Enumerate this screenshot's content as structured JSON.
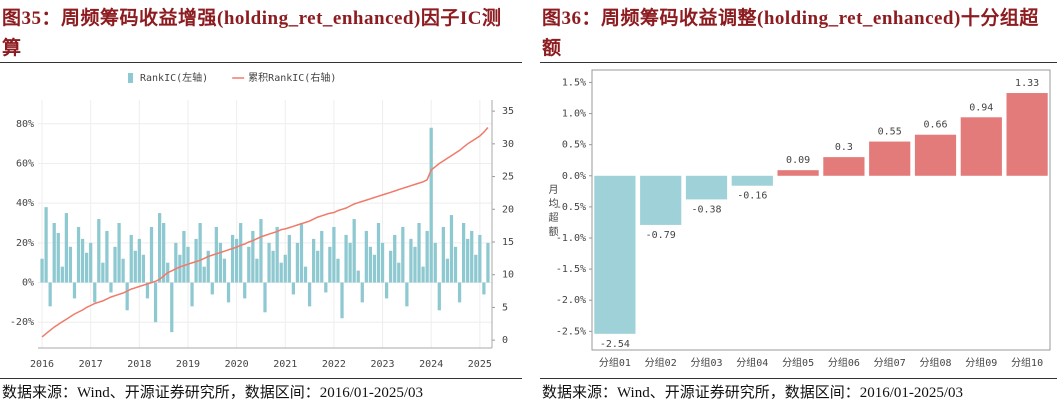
{
  "chart_data": [
    {
      "type": "combo",
      "title": "图35：周频筹码收益增强(holding_ret_enhanced)因子IC测算",
      "source": "数据来源：Wind、开源证券研究所，数据区间：2016/01-2025/03",
      "series": [
        {
          "name": "RankIC(左轴)",
          "type": "bar",
          "color": "#8ec8d0",
          "values": [
            12,
            38,
            -12,
            30,
            25,
            8,
            35,
            18,
            -8,
            28,
            22,
            15,
            20,
            -10,
            32,
            10,
            26,
            -5,
            18,
            30,
            12,
            -14,
            24,
            16,
            22,
            14,
            -8,
            28,
            -20,
            35,
            30,
            10,
            -25,
            20,
            14,
            26,
            18,
            -12,
            22,
            30,
            8,
            16,
            -6,
            28,
            20,
            12,
            -10,
            24,
            22,
            30,
            -8,
            18,
            26,
            12,
            32,
            -15,
            20,
            16,
            28,
            10,
            14,
            24,
            -6,
            20,
            30,
            8,
            -12,
            22,
            16,
            26,
            -5,
            18,
            28,
            12,
            -18,
            24,
            20,
            32,
            6,
            -10,
            26,
            18,
            14,
            30,
            20,
            -8,
            16,
            24,
            10,
            28,
            -12,
            22,
            18,
            30,
            8,
            26,
            78,
            20,
            -14,
            28,
            12,
            34,
            18,
            -10,
            30,
            22,
            26,
            14,
            24,
            -6,
            20
          ],
          "axis": "y"
        },
        {
          "name": "累积RankIC(右轴)",
          "type": "line",
          "color": "#f07a6a",
          "axis": "y2",
          "values": [
            0.5,
            1,
            1.5,
            2,
            2.4,
            2.8,
            3.2,
            3.6,
            4,
            4.3,
            4.6,
            5,
            5.3,
            5.6,
            5.8,
            6,
            6.3,
            6.6,
            6.8,
            7,
            7.2,
            7.5,
            7.8,
            8,
            8.2,
            8.4,
            8.6,
            8.8,
            9,
            9.3,
            9.8,
            10.3,
            10.6,
            10.9,
            11.2,
            11.4,
            11.6,
            11.8,
            12,
            12.2,
            12.5,
            12.8,
            13,
            13.2,
            13.4,
            13.6,
            13.8,
            14,
            14.2,
            14.5,
            14.7,
            15,
            15.2,
            15.5,
            15.8,
            16,
            16.2,
            16.4,
            16.6,
            16.9,
            17,
            17.2,
            17.4,
            17.6,
            17.8,
            18,
            18.2,
            18.5,
            18.8,
            19,
            19.2,
            19.4,
            19.5,
            19.8,
            20,
            20.2,
            20.5,
            20.8,
            21,
            21.2,
            21.4,
            21.6,
            21.8,
            22,
            22.2,
            22.4,
            22.6,
            22.8,
            23,
            23.2,
            23.4,
            23.6,
            23.8,
            24,
            24.2,
            24.5,
            26,
            26.5,
            27,
            27.4,
            27.8,
            28.2,
            28.6,
            29,
            29.5,
            30,
            30.4,
            30.8,
            31.2,
            31.8,
            32.5
          ]
        }
      ],
      "xlim": [
        -1,
        111
      ],
      "xticks": [
        {
          "value": 0,
          "label": "2016"
        },
        {
          "value": 12,
          "label": "2017"
        },
        {
          "value": 24,
          "label": "2018"
        },
        {
          "value": 36,
          "label": "2019"
        },
        {
          "value": 48,
          "label": "2020"
        },
        {
          "value": 60,
          "label": "2021"
        },
        {
          "value": 72,
          "label": "2022"
        },
        {
          "value": 84,
          "label": "2023"
        },
        {
          "value": 96,
          "label": "2024"
        },
        {
          "value": 108,
          "label": "2025"
        }
      ],
      "ylim": [
        -33,
        92
      ],
      "yticks": [
        {
          "value": -20,
          "label": "-20%"
        },
        {
          "value": 0,
          "label": "0%"
        },
        {
          "value": 20,
          "label": "20%"
        },
        {
          "value": 40,
          "label": "40%"
        },
        {
          "value": 60,
          "label": "60%"
        },
        {
          "value": 80,
          "label": "80%"
        }
      ],
      "y2lim": [
        -1.2,
        36.7
      ],
      "y2ticks": [
        0,
        5,
        10,
        15,
        20,
        25,
        30,
        35
      ],
      "grid": true
    },
    {
      "type": "bar",
      "title": "图36：周频筹码收益调整(holding_ret_enhanced)十分组超额",
      "source": "数据来源：Wind、开源证券研究所，数据区间：2016/01-2025/03",
      "ylabel": "月均超额",
      "categories": [
        "分组01",
        "分组02",
        "分组03",
        "分组04",
        "分组05",
        "分组06",
        "分组07",
        "分组08",
        "分组09",
        "分组10"
      ],
      "values": [
        -2.54,
        -0.79,
        -0.38,
        -0.16,
        0.09,
        0.3,
        0.55,
        0.66,
        0.94,
        1.33
      ],
      "color_negative": "#9fd2d8",
      "color_positive": "#e37b7b",
      "ylim": [
        -2.8,
        1.7
      ],
      "yticks": [
        {
          "value": -2.5,
          "label": "-2.5%"
        },
        {
          "value": -2,
          "label": "-2.0%"
        },
        {
          "value": -1.5,
          "label": "-1.5%"
        },
        {
          "value": -1,
          "label": "-1.0%"
        },
        {
          "value": -0.5,
          "label": "-0.5%"
        },
        {
          "value": 0,
          "label": "0.0%"
        },
        {
          "value": 0.5,
          "label": "0.5%"
        },
        {
          "value": 1,
          "label": "1.0%"
        },
        {
          "value": 1.5,
          "label": "1.5%"
        }
      ],
      "grid": false
    }
  ]
}
